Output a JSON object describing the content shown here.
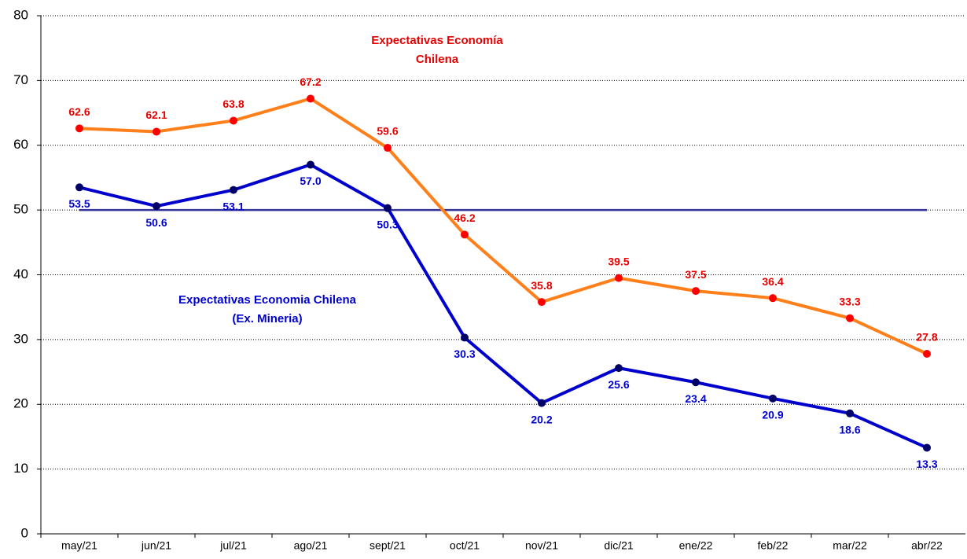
{
  "chart_data": {
    "type": "line",
    "categories": [
      "may/21",
      "jun/21",
      "jul/21",
      "ago/21",
      "sept/21",
      "oct/21",
      "nov/21",
      "dic/21",
      "ene/22",
      "feb/22",
      "mar/22",
      "abr/22"
    ],
    "series": [
      {
        "name": "Expectativas Economía Chilena",
        "color": "#ff7f1a",
        "marker_color": "#ff0000",
        "label_color": "#e60000",
        "values": [
          62.6,
          62.1,
          63.8,
          67.2,
          59.6,
          46.2,
          35.8,
          39.5,
          37.5,
          36.4,
          33.3,
          27.8
        ],
        "value_labels": [
          "62.6",
          "62.1",
          "63.8",
          "67.2",
          "59.6",
          "46.2",
          "35.8",
          "39.5",
          "37.5",
          "36.4",
          "33.3",
          "27.8"
        ]
      },
      {
        "name": "Expectativas Economia Chilena (Ex. Mineria)",
        "color": "#0000cc",
        "marker_color": "#000066",
        "label_color": "#0000cc",
        "values": [
          53.5,
          50.6,
          53.1,
          57.0,
          50.3,
          30.3,
          20.2,
          25.6,
          23.4,
          20.9,
          18.6,
          13.3
        ],
        "value_labels": [
          "53.5",
          "50.6",
          "53.1",
          "57.0",
          "50.3",
          "30.3",
          "20.2",
          "25.6",
          "23.4",
          "20.9",
          "18.6",
          "13.3"
        ]
      }
    ],
    "annotations": [
      {
        "lines": [
          "Expectativas Economía",
          "Chilena"
        ],
        "color": "#e60000"
      },
      {
        "lines": [
          "Expectativas Economia Chilena",
          "(Ex. Mineria)"
        ],
        "color": "#0000cc"
      }
    ],
    "reference_line": 50,
    "reference_color": "#333399",
    "ylim": [
      0,
      80
    ],
    "yticks": [
      0,
      10,
      20,
      30,
      40,
      50,
      60,
      70,
      80
    ],
    "grid": true
  }
}
